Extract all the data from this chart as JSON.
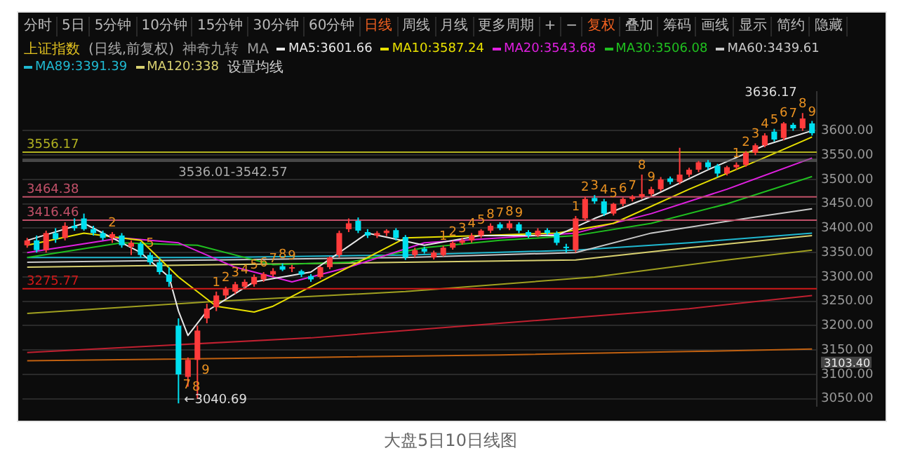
{
  "chart_data": {
    "type": "candlestick",
    "title": "上证指数",
    "subtitle": "(日线,前复权)",
    "categories": [
      null,
      null,
      null,
      null,
      null,
      null,
      null,
      null,
      null,
      null,
      null,
      null,
      null,
      null,
      null,
      null,
      null,
      null,
      null,
      null,
      null,
      null,
      null,
      null,
      null,
      null,
      null,
      null,
      null,
      null,
      null,
      null,
      null,
      null,
      null,
      null,
      null,
      null,
      null,
      null,
      null,
      null,
      null,
      null,
      null,
      null,
      null,
      null,
      null,
      null,
      null,
      null,
      null,
      null,
      null,
      null,
      null,
      null,
      null,
      null,
      null,
      null,
      null,
      null,
      null,
      null,
      null,
      null,
      null,
      null,
      null,
      null,
      null,
      null,
      null,
      null,
      null,
      null,
      null,
      null,
      null,
      null,
      null,
      null
    ],
    "ohlc": [
      [
        3365,
        3380,
        3360,
        3375
      ],
      [
        3375,
        3385,
        3350,
        3355
      ],
      [
        3355,
        3395,
        3350,
        3390
      ],
      [
        3390,
        3400,
        3370,
        3378
      ],
      [
        3380,
        3412,
        3375,
        3405
      ],
      [
        3405,
        3420,
        3395,
        3400
      ],
      [
        3420,
        3430,
        3395,
        3398
      ],
      [
        3398,
        3405,
        3385,
        3390
      ],
      [
        3390,
        3395,
        3375,
        3380
      ],
      [
        3380,
        3392,
        3370,
        3388
      ],
      [
        3385,
        3390,
        3360,
        3365
      ],
      [
        3362,
        3375,
        3345,
        3370
      ],
      [
        3368,
        3372,
        3340,
        3345
      ],
      [
        3345,
        3350,
        3325,
        3330
      ],
      [
        3330,
        3338,
        3305,
        3310
      ],
      [
        3305,
        3320,
        3280,
        3290
      ],
      [
        3200,
        3215,
        3040.69,
        3100
      ],
      [
        3095,
        3135,
        3075,
        3130
      ],
      [
        3130,
        3200,
        3050,
        3190
      ],
      [
        3215,
        3245,
        3205,
        3235
      ],
      [
        3238,
        3270,
        3230,
        3262
      ],
      [
        3262,
        3280,
        3255,
        3275
      ],
      [
        3270,
        3290,
        3265,
        3285
      ],
      [
        3280,
        3295,
        3275,
        3290
      ],
      [
        3285,
        3305,
        3280,
        3300
      ],
      [
        3295,
        3310,
        3290,
        3306
      ],
      [
        3305,
        3318,
        3300,
        3312
      ],
      [
        3322,
        3328,
        3312,
        3315
      ],
      [
        3318,
        3325,
        3310,
        3320
      ],
      [
        3312,
        3315,
        3300,
        3305
      ],
      [
        3302,
        3306,
        3290,
        3295
      ],
      [
        3300,
        3322,
        3296,
        3320
      ],
      [
        3320,
        3342,
        3316,
        3340
      ],
      [
        3345,
        3395,
        3340,
        3390
      ],
      [
        3398,
        3420,
        3392,
        3410
      ],
      [
        3415,
        3422,
        3390,
        3395
      ],
      [
        3392,
        3398,
        3380,
        3385
      ],
      [
        3385,
        3394,
        3380,
        3390
      ],
      [
        3390,
        3398,
        3384,
        3395
      ],
      [
        3396,
        3400,
        3375,
        3380
      ],
      [
        3382,
        3386,
        3335,
        3340
      ],
      [
        3345,
        3360,
        3340,
        3355
      ],
      [
        3358,
        3362,
        3348,
        3352
      ],
      [
        3340,
        3354,
        3336,
        3350
      ],
      [
        3345,
        3364,
        3342,
        3360
      ],
      [
        3360,
        3374,
        3356,
        3370
      ],
      [
        3370,
        3380,
        3366,
        3375
      ],
      [
        3375,
        3390,
        3370,
        3385
      ],
      [
        3385,
        3398,
        3380,
        3395
      ],
      [
        3395,
        3410,
        3390,
        3405
      ],
      [
        3408,
        3412,
        3396,
        3400
      ],
      [
        3400,
        3415,
        3396,
        3410
      ],
      [
        3408,
        3412,
        3390,
        3395
      ],
      [
        3392,
        3396,
        3380,
        3385
      ],
      [
        3385,
        3400,
        3382,
        3395
      ],
      [
        3396,
        3400,
        3386,
        3390
      ],
      [
        3390,
        3394,
        3365,
        3370
      ],
      [
        3362,
        3368,
        3350,
        3360
      ],
      [
        3355,
        3425,
        3350,
        3420
      ],
      [
        3420,
        3465,
        3415,
        3460
      ],
      [
        3462,
        3468,
        3450,
        3455
      ],
      [
        3455,
        3460,
        3425,
        3430
      ],
      [
        3430,
        3452,
        3426,
        3450
      ],
      [
        3450,
        3463,
        3445,
        3460
      ],
      [
        3460,
        3468,
        3455,
        3465
      ],
      [
        3465,
        3510,
        3460,
        3470
      ],
      [
        3470,
        3485,
        3466,
        3480
      ],
      [
        3480,
        3505,
        3476,
        3500
      ],
      [
        3502,
        3506,
        3490,
        3495
      ],
      [
        3495,
        3565,
        3490,
        3510
      ],
      [
        3510,
        3524,
        3505,
        3520
      ],
      [
        3520,
        3538,
        3515,
        3535
      ],
      [
        3535,
        3540,
        3520,
        3525
      ],
      [
        3528,
        3532,
        3505,
        3512
      ],
      [
        3512,
        3528,
        3508,
        3525
      ],
      [
        3525,
        3535,
        3520,
        3530
      ],
      [
        3530,
        3558,
        3526,
        3555
      ],
      [
        3555,
        3574,
        3550,
        3570
      ],
      [
        3570,
        3595,
        3566,
        3590
      ],
      [
        3598,
        3604,
        3578,
        3582
      ],
      [
        3585,
        3618,
        3580,
        3615
      ],
      [
        3612,
        3616,
        3600,
        3605
      ],
      [
        3605,
        3636.17,
        3600,
        3625
      ],
      [
        3615,
        3620,
        3590,
        3595
      ]
    ],
    "value_labels": [
      null,
      null,
      null,
      null,
      null,
      null,
      null,
      null,
      null,
      "2",
      null,
      null,
      null,
      "5",
      null,
      null,
      "7",
      "8",
      "9",
      null,
      "1",
      "2",
      "3",
      "4",
      "5",
      "6",
      "7",
      "8",
      "9",
      null,
      null,
      null,
      null,
      null,
      null,
      null,
      null,
      null,
      null,
      null,
      null,
      null,
      null,
      null,
      "1",
      "2",
      "3",
      "4",
      "5",
      "8",
      "7",
      "8",
      "9",
      null,
      null,
      null,
      null,
      null,
      "1",
      "2",
      "3",
      "4",
      "5",
      "6",
      "7",
      "8",
      "9",
      null,
      null,
      null,
      null,
      null,
      null,
      null,
      null,
      "1",
      "2",
      "3",
      "4",
      "5",
      "6",
      "7",
      "8",
      "9"
    ],
    "series": [
      {
        "name": "MA5:3601.66",
        "type": "line",
        "color": "#e8e8e8",
        "values": [
          3375,
          null,
          null,
          null,
          null,
          null,
          3410,
          null,
          null,
          null,
          null,
          null,
          3350,
          null,
          null,
          3300,
          3230,
          3180,
          null,
          3230,
          null,
          null,
          null,
          null,
          3290,
          null,
          null,
          null,
          null,
          null,
          3310,
          null,
          null,
          null,
          null,
          null,
          3390,
          null,
          null,
          null,
          null,
          null,
          3365,
          null,
          null,
          null,
          null,
          null,
          3385,
          null,
          null,
          null,
          null,
          null,
          null,
          null,
          3385,
          null,
          null,
          null,
          3420,
          null,
          null,
          null,
          null,
          null,
          3465,
          null,
          null,
          null,
          null,
          null,
          3520,
          null,
          null,
          null,
          null,
          null,
          3570,
          null,
          null,
          null,
          null,
          3600
        ]
      },
      {
        "name": "MA10:3587.24",
        "type": "line",
        "color": "#e8e000",
        "values": [
          3365,
          null,
          null,
          null,
          null,
          null,
          3390,
          null,
          null,
          null,
          null,
          null,
          3375,
          null,
          null,
          null,
          3300,
          null,
          null,
          null,
          3240,
          null,
          null,
          null,
          3228,
          null,
          3240,
          null,
          null,
          null,
          null,
          null,
          3300,
          null,
          null,
          null,
          null,
          null,
          null,
          null,
          3380,
          null,
          null,
          null,
          null,
          null,
          null,
          null,
          3385,
          null,
          null,
          null,
          null,
          null,
          null,
          null,
          3390,
          null,
          null,
          null,
          null,
          null,
          3410,
          null,
          null,
          null,
          null,
          null,
          null,
          null,
          3480,
          null,
          null,
          null,
          null,
          null,
          null,
          null,
          3545,
          null,
          null,
          null,
          null,
          3587
        ]
      },
      {
        "name": "MA20:3543.68",
        "type": "line",
        "color": "#e020e0",
        "values": [
          3350,
          null,
          null,
          null,
          null,
          null,
          null,
          null,
          null,
          null,
          3380,
          null,
          null,
          null,
          null,
          null,
          3370,
          null,
          null,
          null,
          null,
          null,
          3320,
          null,
          null,
          null,
          null,
          null,
          3290,
          null,
          null,
          null,
          null,
          null,
          3320,
          null,
          null,
          null,
          null,
          null,
          null,
          null,
          3370,
          null,
          null,
          null,
          null,
          null,
          null,
          null,
          3380,
          null,
          null,
          null,
          null,
          null,
          null,
          null,
          3390,
          null,
          null,
          null,
          null,
          null,
          null,
          null,
          3430,
          null,
          null,
          null,
          null,
          null,
          null,
          null,
          3480,
          null,
          null,
          null,
          null,
          null,
          null,
          null,
          null,
          3544
        ]
      },
      {
        "name": "MA30:3506.08",
        "type": "line",
        "color": "#20c020",
        "values": [
          3340,
          null,
          null,
          null,
          null,
          null,
          null,
          null,
          null,
          null,
          3370,
          null,
          null,
          null,
          null,
          null,
          null,
          null,
          3365,
          null,
          null,
          null,
          null,
          null,
          null,
          null,
          3325,
          null,
          null,
          null,
          null,
          null,
          null,
          null,
          3330,
          null,
          null,
          null,
          null,
          null,
          null,
          null,
          3360,
          null,
          null,
          null,
          null,
          null,
          null,
          null,
          3375,
          null,
          null,
          null,
          null,
          null,
          null,
          null,
          3385,
          null,
          null,
          null,
          null,
          null,
          null,
          null,
          3410,
          null,
          null,
          null,
          null,
          null,
          null,
          null,
          3450,
          null,
          null,
          null,
          null,
          null,
          null,
          null,
          null,
          3506
        ]
      },
      {
        "name": "MA60:3439.61",
        "type": "line",
        "color": "#c8c8c8",
        "values": [
          3330,
          null,
          null,
          null,
          null,
          null,
          null,
          null,
          null,
          null,
          null,
          null,
          null,
          null,
          null,
          null,
          null,
          null,
          null,
          null,
          3335,
          null,
          null,
          null,
          null,
          null,
          null,
          null,
          null,
          null,
          null,
          null,
          null,
          null,
          null,
          null,
          null,
          null,
          null,
          null,
          3340,
          null,
          null,
          null,
          null,
          null,
          null,
          null,
          null,
          null,
          null,
          null,
          null,
          null,
          null,
          null,
          null,
          null,
          3350,
          null,
          null,
          null,
          null,
          null,
          null,
          null,
          3390,
          null,
          null,
          null,
          null,
          null,
          null,
          null,
          null,
          null,
          3420,
          null,
          null,
          null,
          null,
          null,
          null,
          3440
        ]
      },
      {
        "name": "MA89:3391.39",
        "type": "line",
        "color": "#20b8d0",
        "values": [
          3340,
          null,
          null,
          null,
          null,
          null,
          null,
          null,
          null,
          null,
          null,
          null,
          null,
          null,
          null,
          null,
          null,
          null,
          null,
          null,
          3340,
          null,
          null,
          null,
          null,
          null,
          null,
          null,
          null,
          null,
          null,
          null,
          null,
          null,
          null,
          null,
          null,
          null,
          null,
          null,
          3345,
          null,
          null,
          null,
          null,
          null,
          null,
          null,
          null,
          null,
          null,
          null,
          null,
          null,
          null,
          null,
          null,
          null,
          3355,
          null,
          null,
          null,
          null,
          null,
          null,
          null,
          null,
          null,
          null,
          null,
          3370,
          null,
          null,
          null,
          null,
          null,
          null,
          null,
          null,
          null,
          null,
          null,
          null,
          3390
        ]
      },
      {
        "name": "MA120:338",
        "type": "line",
        "color": "#d8d070",
        "values": [
          3320,
          null,
          null,
          null,
          null,
          null,
          null,
          null,
          null,
          null,
          null,
          null,
          null,
          null,
          null,
          null,
          null,
          null,
          null,
          null,
          3325,
          null,
          null,
          null,
          null,
          null,
          null,
          null,
          null,
          null,
          null,
          null,
          null,
          null,
          null,
          null,
          null,
          null,
          null,
          null,
          3330,
          null,
          null,
          null,
          null,
          null,
          null,
          null,
          null,
          null,
          null,
          null,
          null,
          null,
          null,
          null,
          null,
          null,
          3335,
          null,
          null,
          null,
          null,
          null,
          null,
          null,
          null,
          null,
          null,
          null,
          3360,
          null,
          null,
          null,
          null,
          null,
          null,
          null,
          null,
          null,
          null,
          null,
          null,
          3385
        ]
      },
      {
        "type": "line",
        "color": "#a0a020",
        "values": [
          3225,
          null,
          null,
          null,
          null,
          null,
          null,
          null,
          null,
          null,
          null,
          null,
          null,
          null,
          null,
          null,
          null,
          null,
          null,
          null,
          3250,
          null,
          null,
          null,
          null,
          null,
          null,
          null,
          null,
          null,
          null,
          null,
          null,
          null,
          null,
          null,
          null,
          null,
          null,
          null,
          3270,
          null,
          null,
          null,
          null,
          null,
          null,
          null,
          null,
          null,
          null,
          null,
          null,
          null,
          null,
          null,
          null,
          null,
          null,
          null,
          3300,
          null,
          null,
          null,
          null,
          null,
          null,
          null,
          null,
          null,
          null,
          null,
          null,
          null,
          3335,
          null,
          null,
          null,
          null,
          null,
          null,
          null,
          null,
          3355
        ]
      },
      {
        "type": "line",
        "color": "#c02030",
        "values": [
          3145,
          null,
          null,
          null,
          null,
          null,
          null,
          null,
          null,
          null,
          null,
          null,
          null,
          null,
          null,
          null,
          null,
          null,
          null,
          null,
          null,
          null,
          null,
          null,
          null,
          null,
          null,
          null,
          null,
          null,
          3175,
          null,
          null,
          null,
          null,
          null,
          null,
          null,
          null,
          null,
          null,
          null,
          null,
          null,
          null,
          null,
          null,
          null,
          null,
          null,
          3205,
          null,
          null,
          null,
          null,
          null,
          null,
          null,
          null,
          null,
          null,
          null,
          null,
          null,
          null,
          null,
          null,
          null,
          null,
          null,
          3235,
          null,
          null,
          null,
          null,
          null,
          null,
          null,
          null,
          null,
          null,
          null,
          null,
          3262
        ]
      },
      {
        "type": "line",
        "color": "#c06010",
        "values": [
          3128,
          null,
          null,
          null,
          null,
          null,
          null,
          null,
          null,
          null,
          null,
          null,
          null,
          null,
          null,
          null,
          null,
          null,
          null,
          null,
          null,
          null,
          null,
          null,
          null,
          null,
          null,
          null,
          null,
          null,
          3135,
          null,
          null,
          null,
          null,
          null,
          null,
          null,
          null,
          null,
          null,
          null,
          null,
          null,
          null,
          null,
          null,
          null,
          null,
          null,
          3140,
          null,
          null,
          null,
          null,
          null,
          null,
          null,
          null,
          null,
          null,
          null,
          null,
          null,
          null,
          null,
          null,
          null,
          null,
          null,
          3147,
          null,
          null,
          null,
          null,
          null,
          null,
          null,
          null,
          null,
          null,
          null,
          null,
          3152
        ]
      }
    ],
    "ylim": [
      3035,
      3680
    ],
    "yticks": [
      {
        "value": 3050,
        "label": "3050.00"
      },
      {
        "value": 3100,
        "label": "3100.00"
      },
      {
        "value": 3150,
        "label": "3150.00"
      },
      {
        "value": 3200,
        "label": "3200.00"
      },
      {
        "value": 3250,
        "label": "3250.00"
      },
      {
        "value": 3300,
        "label": "3300.00"
      },
      {
        "value": 3350,
        "label": "3350.00"
      },
      {
        "value": 3400,
        "label": "3400.00"
      },
      {
        "value": 3450,
        "label": "3450.00"
      },
      {
        "value": 3500,
        "label": "3500.00"
      },
      {
        "value": 3550,
        "label": "3550.00"
      },
      {
        "value": 3600,
        "label": "3600.00"
      }
    ],
    "tick_labels": "y",
    "grid": "y",
    "legend": "top left",
    "ref_lines": [
      {
        "axis": "y",
        "value": 3556.17,
        "label": "3556.17",
        "color": "#b0b020"
      },
      {
        "axis": "y",
        "value": 3464.38,
        "label": "3464.38",
        "color": "#c05068"
      },
      {
        "axis": "y",
        "value": 3416.46,
        "label": "3416.46",
        "color": "#c05068"
      },
      {
        "axis": "y",
        "value": 3275.77,
        "label": "3275.77",
        "color": "#d01818"
      }
    ],
    "bands": [
      {
        "axis": "y",
        "from": 3536.01,
        "to": 3542.57,
        "label": "3536.01-3542.57",
        "color": "#707070"
      }
    ],
    "annotations": [
      "分时",
      "5日",
      "5分钟",
      "10分钟",
      "15分钟",
      "30分钟",
      "60分钟",
      "日线",
      "周线",
      "月线",
      "更多周期",
      "+",
      "−",
      "复权",
      "叠加",
      "筹码",
      "画线",
      "显示",
      "简约",
      "隐藏",
      "神奇九转",
      "MA",
      "设置均线",
      "大盘5日10日线图",
      "3636.17",
      "←3040.69",
      "3103.40"
    ]
  }
}
